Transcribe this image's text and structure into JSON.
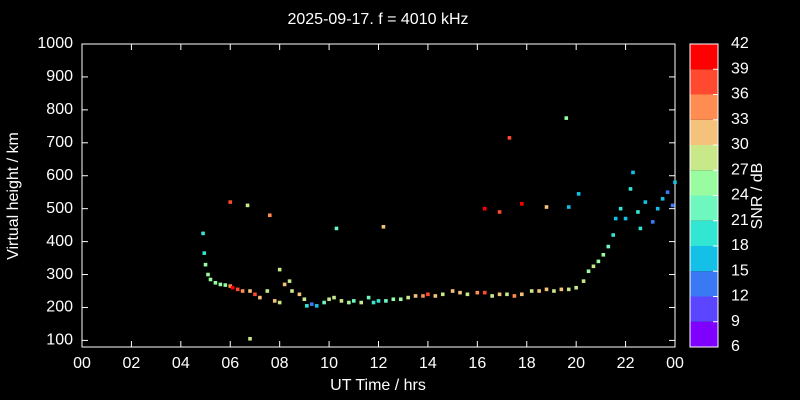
{
  "chart_data": {
    "type": "scatter",
    "title": "2025-09-17. f = 4010 kHz",
    "x_label": "UT Time / hrs",
    "y_label": "Virtual height / km",
    "xlim": [
      0,
      24
    ],
    "xticks": [
      {
        "value": 0,
        "label": "00"
      },
      {
        "value": 2,
        "label": "02"
      },
      {
        "value": 4,
        "label": "04"
      },
      {
        "value": 6,
        "label": "06"
      },
      {
        "value": 8,
        "label": "08"
      },
      10,
      12,
      14,
      16,
      18,
      20,
      22,
      {
        "value": 24,
        "label": "00"
      }
    ],
    "ylim": [
      80,
      1000
    ],
    "yticks": [
      100,
      200,
      300,
      400,
      500,
      600,
      700,
      800,
      900,
      1000
    ],
    "colorbar": {
      "label": "SNR / dB",
      "lim": [
        6,
        42
      ],
      "ticks": [
        6,
        9,
        12,
        15,
        18,
        21,
        24,
        27,
        30,
        33,
        36,
        39,
        42
      ],
      "colors": [
        "#7f00ff",
        "#5b45ff",
        "#3a78f5",
        "#15c0e8",
        "#33e6d4",
        "#6ef8c0",
        "#99fca0",
        "#c8e88a",
        "#f4c27a",
        "#ff8c50",
        "#ff4a30",
        "#ff0000"
      ]
    },
    "x": [
      4.9,
      4.95,
      5.0,
      5.1,
      5.2,
      5.4,
      5.6,
      5.8,
      6.0,
      6.1,
      6.3,
      6.5,
      6.8,
      7.0,
      7.2,
      7.5,
      7.8,
      8.0,
      8.0,
      8.2,
      8.4,
      8.5,
      8.8,
      9.0,
      9.1,
      9.3,
      9.5,
      9.8,
      10.0,
      10.2,
      10.5,
      10.8,
      11.0,
      11.3,
      11.6,
      11.8,
      12.0,
      12.3,
      12.6,
      12.9,
      13.2,
      13.5,
      13.8,
      14.0,
      14.3,
      14.6,
      15.0,
      15.3,
      15.6,
      16.0,
      16.3,
      16.6,
      16.9,
      17.2,
      17.5,
      17.8,
      18.2,
      18.5,
      18.8,
      19.1,
      19.4,
      19.7,
      20.0,
      20.3,
      20.5,
      20.7,
      20.9,
      21.1,
      21.3,
      21.5,
      21.6,
      21.8,
      22.0,
      22.2,
      22.3,
      22.5,
      22.6,
      22.8,
      23.1,
      23.3,
      23.5,
      23.7,
      23.9,
      24.0,
      6.0,
      6.7,
      7.6,
      6.8,
      10.3,
      12.2,
      16.3,
      16.9,
      17.3,
      17.8,
      18.8,
      19.6,
      19.7,
      20.1
    ],
    "y": [
      425,
      365,
      330,
      300,
      285,
      275,
      270,
      268,
      265,
      260,
      255,
      250,
      250,
      240,
      230,
      250,
      220,
      215,
      315,
      270,
      280,
      250,
      240,
      225,
      205,
      210,
      205,
      215,
      225,
      230,
      220,
      215,
      220,
      215,
      230,
      215,
      220,
      220,
      225,
      225,
      230,
      235,
      235,
      240,
      235,
      240,
      250,
      245,
      240,
      245,
      245,
      235,
      240,
      240,
      235,
      240,
      250,
      250,
      255,
      250,
      255,
      255,
      260,
      280,
      310,
      325,
      340,
      360,
      385,
      420,
      470,
      500,
      470,
      560,
      610,
      490,
      440,
      520,
      460,
      500,
      530,
      550,
      510,
      580,
      520,
      510,
      480,
      105,
      440,
      445,
      500,
      490,
      715,
      515,
      505,
      775,
      505,
      545
    ],
    "snr": [
      20,
      20,
      25,
      26,
      26,
      25,
      26,
      24,
      35,
      40,
      38,
      33,
      30,
      36,
      30,
      28,
      31,
      28,
      27,
      30,
      28,
      27,
      30,
      28,
      20,
      14,
      16,
      22,
      27,
      29,
      27,
      25,
      22,
      27,
      22,
      20,
      19,
      22,
      25,
      24,
      27,
      30,
      33,
      36,
      30,
      28,
      31,
      30,
      28,
      33,
      37,
      29,
      31,
      28,
      33,
      30,
      28,
      31,
      30,
      28,
      30,
      27,
      29,
      28,
      26,
      27,
      26,
      24,
      22,
      20,
      16,
      18,
      17,
      19,
      17,
      20,
      19,
      15,
      14,
      16,
      15,
      14,
      13,
      15,
      38,
      27,
      33,
      28,
      21,
      31,
      40,
      38,
      36,
      40,
      31,
      24,
      16,
      15
    ]
  }
}
